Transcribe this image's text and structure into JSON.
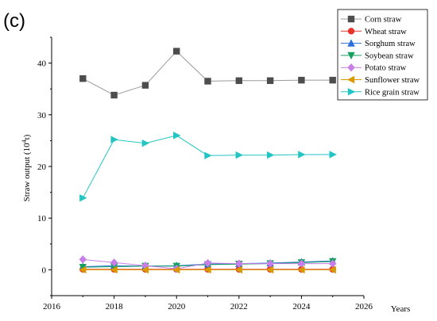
{
  "panel_label": "(c)",
  "chart_data": {
    "type": "line",
    "title": "",
    "xlabel": "Years",
    "ylabel_main": "Straw output (10",
    "ylabel_sup": "4",
    "ylabel_tail": "t)",
    "xlim": [
      2016,
      2026
    ],
    "ylim": [
      -5,
      45
    ],
    "xticks": [
      "2016",
      "2018",
      "2020",
      "2022",
      "2024",
      "2026"
    ],
    "yticks": [
      "0",
      "10",
      "20",
      "30",
      "40"
    ],
    "x": [
      2017,
      2018,
      2019,
      2020,
      2021,
      2022,
      2023,
      2024,
      2025
    ],
    "legend_position": "top-right",
    "series": [
      {
        "name": "Corn straw",
        "marker": "square",
        "color": "#4d4d4d",
        "line_color": "#9a9a9a",
        "values": [
          37.0,
          33.8,
          35.7,
          42.3,
          36.5,
          36.6,
          36.6,
          36.7,
          36.7
        ]
      },
      {
        "name": "Wheat straw",
        "marker": "circle",
        "color": "#e8332a",
        "line_color": "#e8332a",
        "values": [
          0.1,
          0.1,
          0.1,
          0.1,
          0.1,
          0.1,
          0.1,
          0.1,
          0.1
        ]
      },
      {
        "name": "Sorghum straw",
        "marker": "triangle-up",
        "color": "#2a6fdb",
        "line_color": "#2a6fdb",
        "values": [
          0.6,
          0.8,
          0.7,
          0.8,
          1.1,
          1.2,
          1.3,
          1.5,
          1.7
        ]
      },
      {
        "name": "Soybean straw",
        "marker": "triangle-down",
        "color": "#16a05e",
        "line_color": "#16a05e",
        "values": [
          0.5,
          0.6,
          0.7,
          0.7,
          1.0,
          1.1,
          1.2,
          1.4,
          1.6
        ]
      },
      {
        "name": "Potato straw",
        "marker": "diamond",
        "color": "#c77ee6",
        "line_color": "#c77ee6",
        "values": [
          2.0,
          1.4,
          0.8,
          0.2,
          1.3,
          1.2,
          1.2,
          1.2,
          1.2
        ]
      },
      {
        "name": "Sunflower straw",
        "marker": "triangle-left",
        "color": "#d99a00",
        "line_color": "#d99a00",
        "values": [
          0.0,
          0.0,
          0.0,
          0.0,
          0.0,
          0.0,
          0.0,
          0.0,
          0.0
        ]
      },
      {
        "name": "Rice grain straw",
        "marker": "triangle-right",
        "color": "#22c4c4",
        "line_color": "#22c4c4",
        "values": [
          13.9,
          25.2,
          24.5,
          26.0,
          22.1,
          22.2,
          22.2,
          22.3,
          22.3
        ]
      }
    ]
  }
}
